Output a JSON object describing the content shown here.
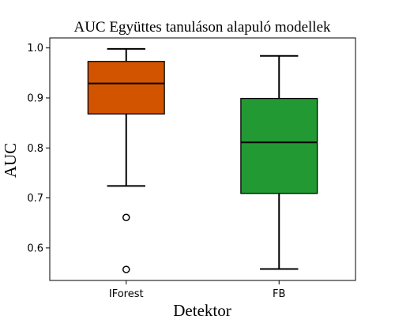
{
  "chart_data": {
    "type": "box",
    "title": "AUC Együttes tanuláson alapuló modellek",
    "xlabel": "Detektor",
    "ylabel": "AUC",
    "ylim": [
      0.535,
      1.02
    ],
    "yticks": [
      "0.6",
      "0.7",
      "0.8",
      "0.9",
      "1.0"
    ],
    "categories": [
      "IForest",
      "FB"
    ],
    "boxes": [
      {
        "category": "IForest",
        "color": "#d35400",
        "whisker_low": 0.724,
        "q1": 0.868,
        "median": 0.929,
        "q3": 0.973,
        "whisker_high": 0.998,
        "outliers": [
          0.661,
          0.557
        ]
      },
      {
        "category": "FB",
        "color": "#229933",
        "whisker_low": 0.558,
        "q1": 0.709,
        "median": 0.811,
        "q3": 0.899,
        "whisker_high": 0.984,
        "outliers": []
      }
    ],
    "grid": false,
    "legend": "none"
  }
}
